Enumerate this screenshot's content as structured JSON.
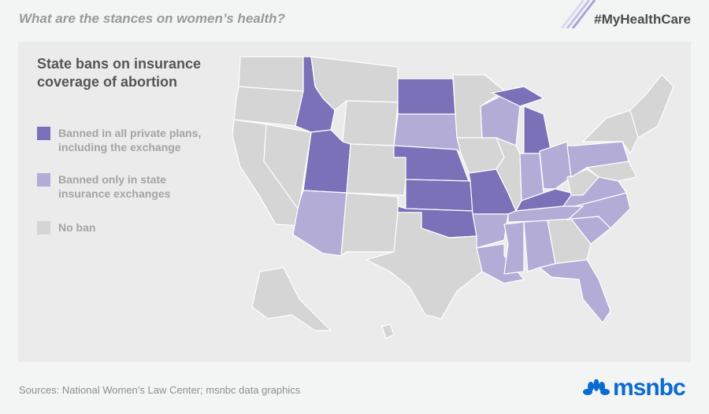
{
  "header": {
    "kicker": "What are the stances on women’s health?",
    "hashtag": "#MyHealthCare"
  },
  "legend": {
    "title": "State bans on insurance coverage of abortion",
    "items": [
      {
        "key": "full",
        "label": "Banned in all private plans, including the exchange",
        "color": "#7a71b9"
      },
      {
        "key": "exchange",
        "label": "Banned only in state insurance exchanges",
        "color": "#b2acd7"
      },
      {
        "key": "none",
        "label": "No ban",
        "color": "#d5d5d5"
      }
    ]
  },
  "map_data": {
    "full": [
      "Idaho",
      "Utah",
      "North Dakota",
      "Nebraska",
      "Kansas",
      "Oklahoma",
      "Missouri",
      "Michigan",
      "Kentucky"
    ],
    "exchange": [
      "Arizona",
      "South Dakota",
      "Wisconsin",
      "Indiana",
      "Ohio",
      "Pennsylvania",
      "Virginia",
      "North Carolina",
      "South Carolina",
      "Tennessee",
      "Arkansas",
      "Louisiana",
      "Mississippi",
      "Alabama",
      "Florida"
    ],
    "border_color": "#ffffff"
  },
  "footer": {
    "source": "Sources: National Women’s Law Center; msnbc data graphics",
    "logo": "msnbc"
  }
}
